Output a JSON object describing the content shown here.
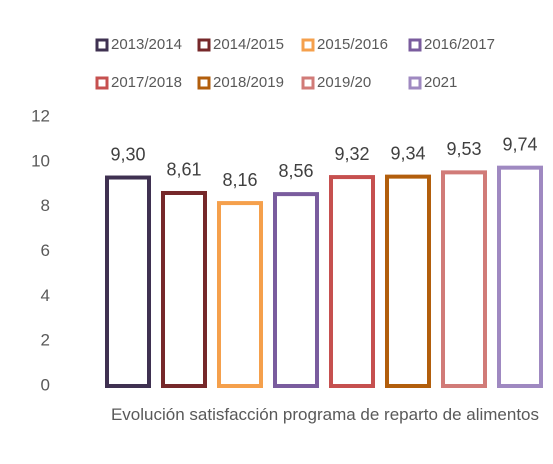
{
  "chart_data": {
    "type": "bar",
    "categories": [
      "Evolución satisfacción programa de reparto de alimentos"
    ],
    "series": [
      {
        "name": "2013/2014",
        "color": "#3f3151",
        "values": [
          9.3
        ],
        "value_labels": [
          "9,30"
        ]
      },
      {
        "name": "2014/2015",
        "color": "#76282a",
        "values": [
          8.61
        ],
        "value_labels": [
          "8,61"
        ]
      },
      {
        "name": "2015/2016",
        "color": "#f5a04c",
        "values": [
          8.16
        ],
        "value_labels": [
          "8,16"
        ]
      },
      {
        "name": "2016/2017",
        "color": "#7a5c9e",
        "values": [
          8.56
        ],
        "value_labels": [
          "8,56"
        ]
      },
      {
        "name": "2017/2018",
        "color": "#c6504f",
        "values": [
          9.32
        ],
        "value_labels": [
          "9,32"
        ]
      },
      {
        "name": "2018/2019",
        "color": "#b25e0c",
        "values": [
          9.34
        ],
        "value_labels": [
          "9,34"
        ]
      },
      {
        "name": "2019/20",
        "color": "#d17b78",
        "values": [
          9.53
        ],
        "value_labels": [
          "9,53"
        ]
      },
      {
        "name": "2021",
        "color": "#9f89c1",
        "values": [
          9.74
        ],
        "value_labels": [
          "9,74"
        ]
      }
    ],
    "ylim": [
      0,
      12
    ],
    "yticks": [
      0,
      2,
      4,
      6,
      8,
      10,
      12
    ],
    "grid": false,
    "legend": "top"
  }
}
